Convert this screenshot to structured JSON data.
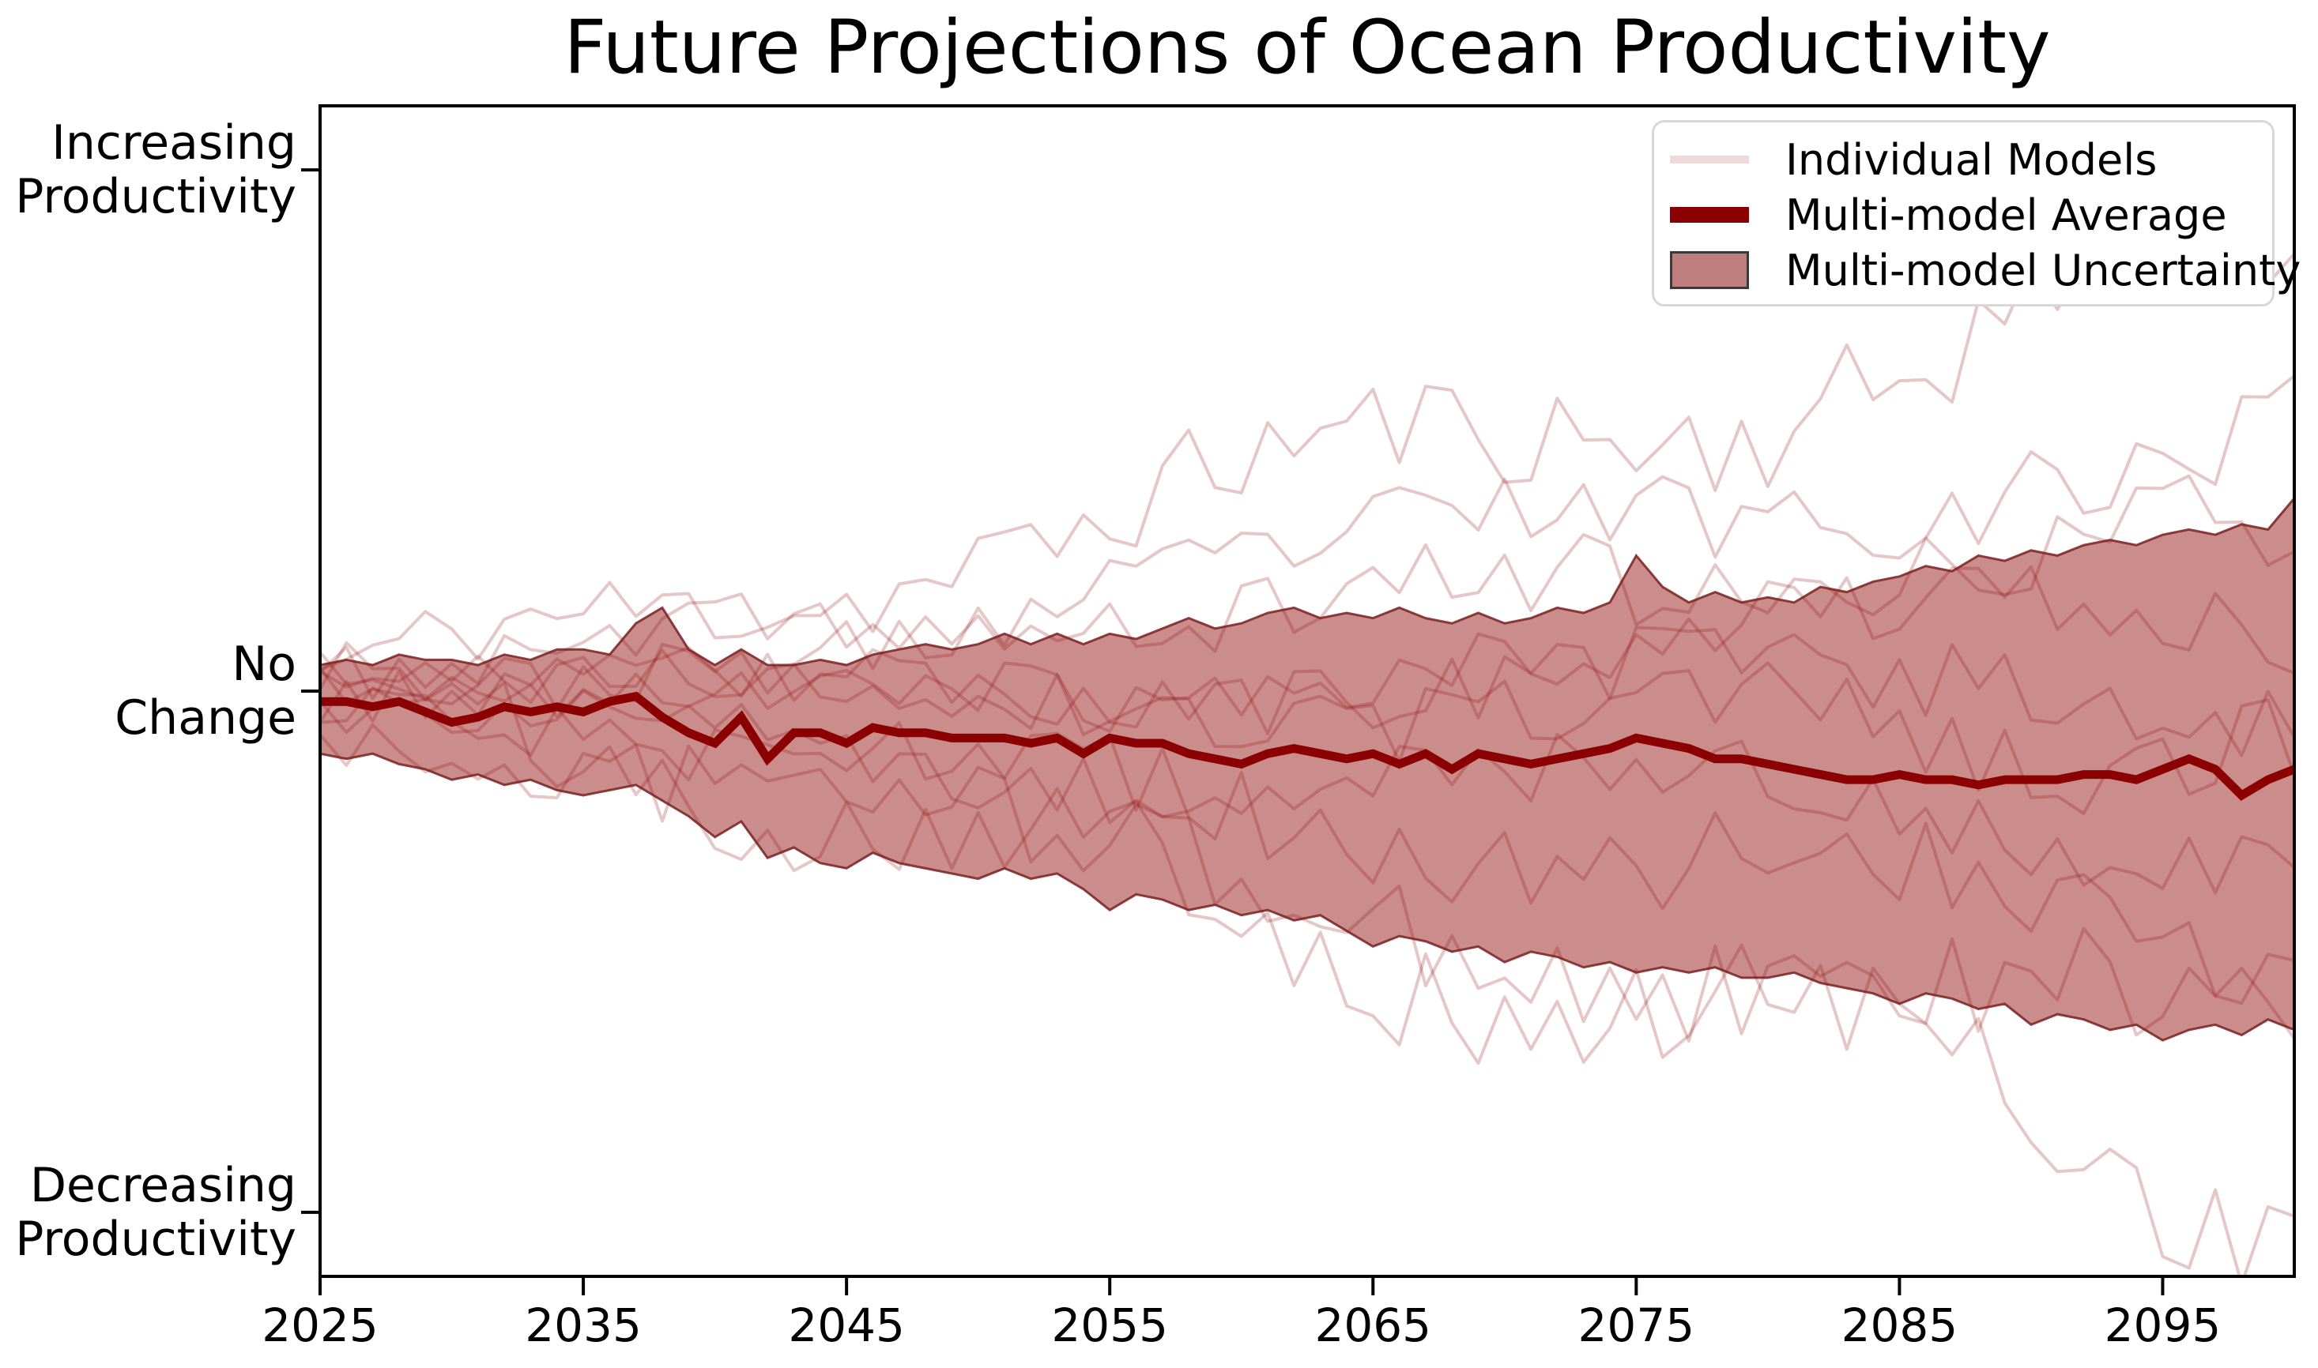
{
  "title": "Future Projections of Ocean Productivity",
  "legend": {
    "items": [
      {
        "label": "Individual Models",
        "swatch": "light-line"
      },
      {
        "label": "Multi-model Average",
        "swatch": "dark-line"
      },
      {
        "label": "Multi-model Uncertainty",
        "swatch": "shaded-patch"
      }
    ]
  },
  "colors": {
    "average_line": "#8b0000",
    "individual_line": "rgba(139,0,0,0.22)",
    "band_fill": "rgba(139,0,0,0.45)",
    "band_edge": "rgba(122,32,32,0.85)",
    "legend_individual_swatch": "#f0d9d9",
    "legend_patch": "#bf7e7e",
    "axis": "#000000",
    "background": "#ffffff"
  },
  "chart_data": {
    "type": "line",
    "title": "Future Projections of Ocean Productivity",
    "xlabel": "",
    "ylabel": "",
    "grid": false,
    "legend_position": "upper right",
    "xlim": [
      2025,
      2100
    ],
    "ylim": [
      -1.123,
      1.123
    ],
    "x_years": {
      "start": 2025,
      "end": 2100,
      "step": 1,
      "count": 76
    },
    "x_tick_years": [
      2025,
      2035,
      2045,
      2055,
      2065,
      2075,
      2085,
      2095
    ],
    "x_tick_labels": [
      "2025",
      "2035",
      "2045",
      "2055",
      "2065",
      "2075",
      "2085",
      "2095"
    ],
    "y_ticks": [
      {
        "value": 1,
        "line1": "Increasing",
        "line2": "Productivity"
      },
      {
        "value": 0,
        "line1": "No",
        "line2": "Change"
      },
      {
        "value": -1,
        "line1": "Decreasing",
        "line2": "Productivity"
      }
    ],
    "average": [
      -0.02,
      -0.02,
      -0.03,
      -0.02,
      -0.04,
      -0.06,
      -0.05,
      -0.03,
      -0.04,
      -0.03,
      -0.04,
      -0.02,
      -0.01,
      -0.05,
      -0.08,
      -0.1,
      -0.05,
      -0.13,
      -0.08,
      -0.08,
      -0.1,
      -0.07,
      -0.08,
      -0.08,
      -0.09,
      -0.09,
      -0.09,
      -0.1,
      -0.09,
      -0.12,
      -0.09,
      -0.1,
      -0.1,
      -0.12,
      -0.13,
      -0.14,
      -0.12,
      -0.11,
      -0.12,
      -0.13,
      -0.12,
      -0.14,
      -0.12,
      -0.15,
      -0.12,
      -0.13,
      -0.14,
      -0.13,
      -0.12,
      -0.11,
      -0.09,
      -0.1,
      -0.11,
      -0.13,
      -0.13,
      -0.14,
      -0.15,
      -0.16,
      -0.17,
      -0.17,
      -0.16,
      -0.17,
      -0.17,
      -0.18,
      -0.17,
      -0.17,
      -0.17,
      -0.16,
      -0.16,
      -0.17,
      -0.15,
      -0.13,
      -0.15,
      -0.2,
      -0.17,
      -0.15
    ],
    "uncertainty_upper": [
      0.05,
      0.06,
      0.05,
      0.07,
      0.06,
      0.06,
      0.05,
      0.07,
      0.06,
      0.08,
      0.08,
      0.07,
      0.13,
      0.16,
      0.08,
      0.05,
      0.08,
      0.05,
      0.05,
      0.06,
      0.05,
      0.07,
      0.08,
      0.09,
      0.08,
      0.09,
      0.11,
      0.09,
      0.11,
      0.09,
      0.11,
      0.1,
      0.12,
      0.14,
      0.12,
      0.13,
      0.15,
      0.16,
      0.14,
      0.15,
      0.14,
      0.16,
      0.14,
      0.13,
      0.15,
      0.13,
      0.14,
      0.16,
      0.15,
      0.17,
      0.26,
      0.2,
      0.17,
      0.19,
      0.17,
      0.18,
      0.17,
      0.2,
      0.19,
      0.21,
      0.22,
      0.24,
      0.23,
      0.26,
      0.25,
      0.27,
      0.26,
      0.28,
      0.29,
      0.28,
      0.3,
      0.31,
      0.3,
      0.32,
      0.31,
      0.37
    ],
    "uncertainty_lower": [
      -0.12,
      -0.13,
      -0.12,
      -0.14,
      -0.15,
      -0.17,
      -0.16,
      -0.18,
      -0.17,
      -0.19,
      -0.2,
      -0.19,
      -0.18,
      -0.21,
      -0.24,
      -0.28,
      -0.25,
      -0.32,
      -0.3,
      -0.33,
      -0.34,
      -0.31,
      -0.33,
      -0.34,
      -0.35,
      -0.36,
      -0.34,
      -0.36,
      -0.35,
      -0.38,
      -0.42,
      -0.39,
      -0.4,
      -0.42,
      -0.41,
      -0.43,
      -0.42,
      -0.44,
      -0.43,
      -0.46,
      -0.49,
      -0.47,
      -0.48,
      -0.5,
      -0.49,
      -0.52,
      -0.5,
      -0.51,
      -0.53,
      -0.52,
      -0.54,
      -0.53,
      -0.54,
      -0.53,
      -0.55,
      -0.55,
      -0.54,
      -0.56,
      -0.57,
      -0.58,
      -0.6,
      -0.58,
      -0.59,
      -0.61,
      -0.6,
      -0.64,
      -0.62,
      -0.63,
      -0.65,
      -0.64,
      -0.67,
      -0.65,
      -0.64,
      -0.66,
      -0.63,
      -0.65
    ],
    "individual_models": {
      "count": 10,
      "note": "Semi-transparent annual spaghetti lines diverging from ~0 in 2025 to between about +0.8 and -0.93 by 2100; reconstructed deterministically from these parameters.",
      "params": [
        {
          "start": 0.02,
          "end": 0.8,
          "meander": 0.12,
          "freq": 2.3,
          "phase": 0.6,
          "noise0": 0.07,
          "noise1": 0.13,
          "seed": 11
        },
        {
          "start": -0.04,
          "end": 0.52,
          "meander": 0.08,
          "freq": 1.7,
          "phase": 2.1,
          "noise0": 0.05,
          "noise1": 0.1,
          "seed": 23
        },
        {
          "start": 0.05,
          "end": 0.28,
          "meander": 0.07,
          "freq": 2.8,
          "phase": 4.0,
          "noise0": 0.05,
          "noise1": 0.1,
          "seed": 37
        },
        {
          "start": -0.02,
          "end": 0.12,
          "meander": 0.09,
          "freq": 1.4,
          "phase": 1.0,
          "noise0": 0.05,
          "noise1": 0.09,
          "seed": 41
        },
        {
          "start": 0.0,
          "end": 0.02,
          "meander": 0.06,
          "freq": 2.0,
          "phase": 5.2,
          "noise0": 0.05,
          "noise1": 0.09,
          "seed": 53
        },
        {
          "start": 0.03,
          "end": -0.1,
          "meander": 0.07,
          "freq": 2.5,
          "phase": 3.3,
          "noise0": 0.05,
          "noise1": 0.09,
          "seed": 67
        },
        {
          "start": -0.05,
          "end": -0.28,
          "meander": 0.08,
          "freq": 1.8,
          "phase": 0.2,
          "noise0": 0.05,
          "noise1": 0.1,
          "seed": 71
        },
        {
          "start": 0.01,
          "end": -0.5,
          "meander": 0.09,
          "freq": 2.3,
          "phase": 2.8,
          "noise0": 0.06,
          "noise1": 0.1,
          "seed": 83
        },
        {
          "start": -0.06,
          "end": -0.72,
          "meander": 0.11,
          "freq": 1.6,
          "phase": 4.6,
          "noise0": 0.07,
          "noise1": 0.12,
          "seed": 97
        },
        {
          "start": 0.02,
          "end": -0.93,
          "meander": 0.14,
          "freq": 2.6,
          "phase": 1.5,
          "noise0": 0.08,
          "noise1": 0.13,
          "seed": 101
        }
      ]
    }
  }
}
